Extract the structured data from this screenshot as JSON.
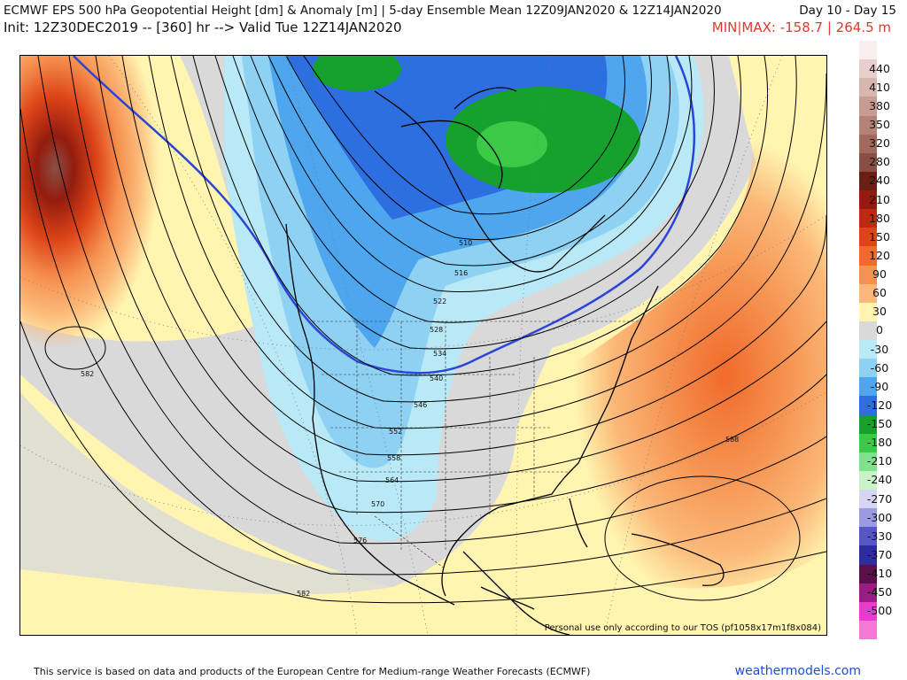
{
  "header": {
    "title": "ECMWF EPS 500 hPa Geopotential Height [dm] & Anomaly [m] | 5-day Ensemble Mean 12Z09JAN2020 & 12Z14JAN2020",
    "day_range": "Day 10 - Day 15",
    "init": "Init: 12Z30DEC2019 -- [360] hr --> Valid Tue 12Z14JAN2020",
    "minmax": "MIN|MAX: -158.7 | 264.5 m"
  },
  "map": {
    "tos_note": "Personal use only according to our TOS (pf1058x17m1f8x084)",
    "contour_labels": [
      "582",
      "510",
      "516",
      "522",
      "528",
      "534",
      "540",
      "546",
      "552",
      "558",
      "564",
      "570",
      "576",
      "582",
      "588"
    ]
  },
  "colorbar": {
    "levels": [
      {
        "label": "",
        "color": "#fbeeee"
      },
      {
        "label": "440",
        "color": "#e9cfcc"
      },
      {
        "label": "410",
        "color": "#d8b5ae"
      },
      {
        "label": "380",
        "color": "#c89c92"
      },
      {
        "label": "350",
        "color": "#b58375"
      },
      {
        "label": "320",
        "color": "#a16a5c"
      },
      {
        "label": "280",
        "color": "#8a4f44"
      },
      {
        "label": "240",
        "color": "#6a1f15"
      },
      {
        "label": "210",
        "color": "#941c0f"
      },
      {
        "label": "180",
        "color": "#bd2a12"
      },
      {
        "label": "150",
        "color": "#dd4418"
      },
      {
        "label": "120",
        "color": "#f06a2b"
      },
      {
        "label": "90",
        "color": "#f69250"
      },
      {
        "label": "60",
        "color": "#fbb878"
      },
      {
        "label": "30",
        "color": "#fff5b0"
      },
      {
        "label": "0",
        "color": "#d9d9d9"
      },
      {
        "label": "-30",
        "color": "#b9e9f6"
      },
      {
        "label": "-60",
        "color": "#8fd1f3"
      },
      {
        "label": "-90",
        "color": "#4ea6ef"
      },
      {
        "label": "-120",
        "color": "#2d6fe0"
      },
      {
        "label": "-150",
        "color": "#15a12b"
      },
      {
        "label": "-180",
        "color": "#3bc948"
      },
      {
        "label": "-210",
        "color": "#7de28c"
      },
      {
        "label": "-240",
        "color": "#c8f2c8"
      },
      {
        "label": "-270",
        "color": "#d6d6f4"
      },
      {
        "label": "-300",
        "color": "#9b9be4"
      },
      {
        "label": "-330",
        "color": "#5656c8"
      },
      {
        "label": "-370",
        "color": "#2d2d9e"
      },
      {
        "label": "-410",
        "color": "#5c0f4a"
      },
      {
        "label": "-450",
        "color": "#9c1c86"
      },
      {
        "label": "-500",
        "color": "#e63cd2"
      }
    ],
    "bottom_color": "#f47ad8"
  },
  "footer": {
    "note": "This service is based on data and products of the European Centre for Medium-range Weather Forecasts (ECMWF)",
    "site": "weathermodels.com"
  }
}
